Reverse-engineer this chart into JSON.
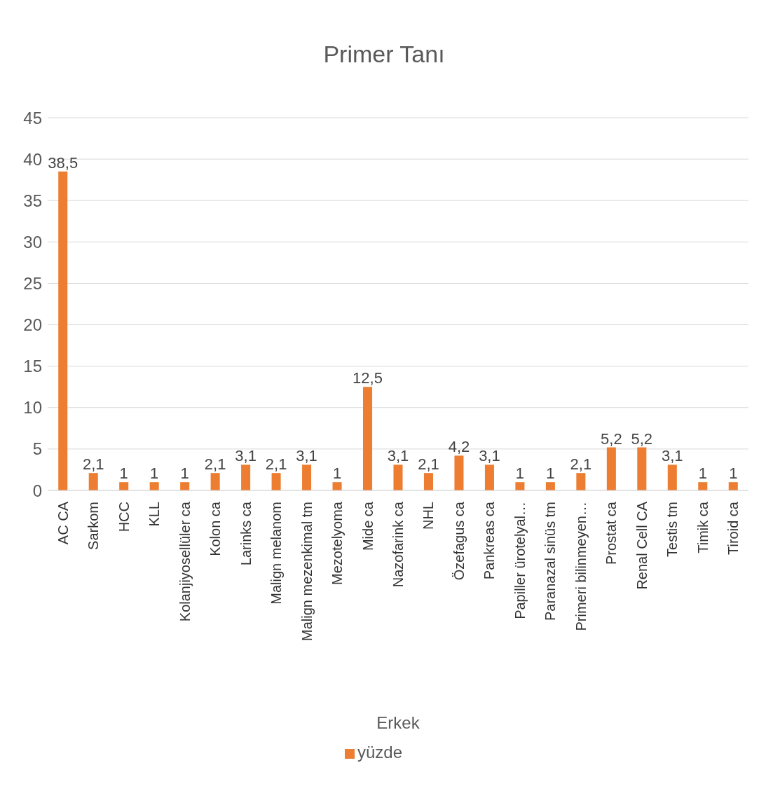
{
  "chart_data": {
    "type": "bar",
    "title": "Primer Tanı",
    "xlabel": "Erkek",
    "categories": [
      "AC CA",
      "Sarkom",
      "HCC",
      "KLL",
      "Kolanjiyosellüler ca",
      "Kolon ca",
      "Larinks ca",
      "Malign melanom",
      "Malign mezenkimal tm",
      "Mezotelyoma",
      "Mide ca",
      "Nazofarink ca",
      "NHL",
      "Özefagus ca",
      "Pankreas ca",
      "Papiller ürotelyal…",
      "Paranazal sinüs tm",
      "Primeri bilinmeyen…",
      "Prostat ca",
      "Renal Cell CA",
      "Testis tm",
      "Timik ca",
      "Tiroid ca"
    ],
    "series": [
      {
        "name": "yüzde",
        "color": "#ed7d31",
        "values": [
          38.5,
          2.1,
          1,
          1,
          1,
          2.1,
          3.1,
          2.1,
          3.1,
          1,
          12.5,
          3.1,
          2.1,
          4.2,
          3.1,
          1,
          1,
          2.1,
          5.2,
          5.2,
          3.1,
          1,
          1
        ],
        "value_labels": [
          "38,5",
          "2,1",
          "1",
          "1",
          "1",
          "2,1",
          "3,1",
          "2,1",
          "3,1",
          "1",
          "12,5",
          "3,1",
          "2,1",
          "4,2",
          "3,1",
          "1",
          "1",
          "2,1",
          "5,2",
          "5,2",
          "3,1",
          "1",
          "1"
        ]
      }
    ],
    "ylim": [
      0,
      45
    ],
    "yticks": [
      0,
      5,
      10,
      15,
      20,
      25,
      30,
      35,
      40,
      45
    ],
    "grid": "y",
    "legend": "bottom"
  }
}
